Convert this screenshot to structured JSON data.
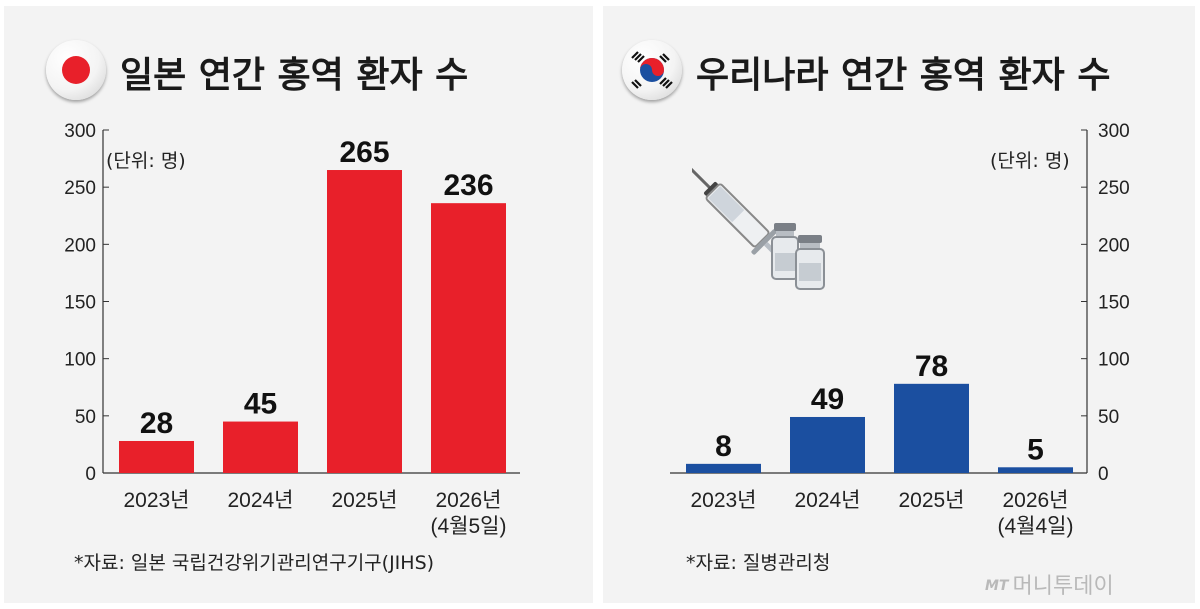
{
  "chart_data": [
    {
      "type": "bar",
      "title": "일본 연간 홍역 환자 수",
      "unit": "(단위: 명)",
      "source": "*자료: 일본 국립건강위기관리연구기구(JIHS)",
      "categories": [
        "2023년",
        "2024년",
        "2025년",
        "2026년\n(4월5일)"
      ],
      "values": [
        28,
        45,
        265,
        236
      ],
      "value_labels": [
        "28",
        "45",
        "265",
        "236"
      ],
      "ylim": [
        0,
        300
      ],
      "yticks": [
        "0",
        "50",
        "100",
        "150",
        "200",
        "250",
        "300"
      ],
      "bar_color": "#e8202a",
      "y_axis_side": "left"
    },
    {
      "type": "bar",
      "title": "우리나라 연간 홍역 환자 수",
      "unit": "(단위: 명)",
      "source": "*자료: 질병관리청",
      "categories": [
        "2023년",
        "2024년",
        "2025년",
        "2026년\n(4월4일)"
      ],
      "values": [
        8,
        49,
        78,
        5
      ],
      "value_labels": [
        "8",
        "49",
        "78",
        "5"
      ],
      "ylim": [
        0,
        300
      ],
      "yticks": [
        "0",
        "50",
        "100",
        "150",
        "200",
        "250",
        "300"
      ],
      "bar_color": "#1b4fa0",
      "y_axis_side": "right"
    }
  ],
  "logo": {
    "mark": "MT",
    "text": "머니투데이"
  },
  "icons": {
    "japan_flag": "japan-flag-icon",
    "korea_flag": "korea-flag-icon",
    "vaccine": "syringe-vials-icon"
  }
}
